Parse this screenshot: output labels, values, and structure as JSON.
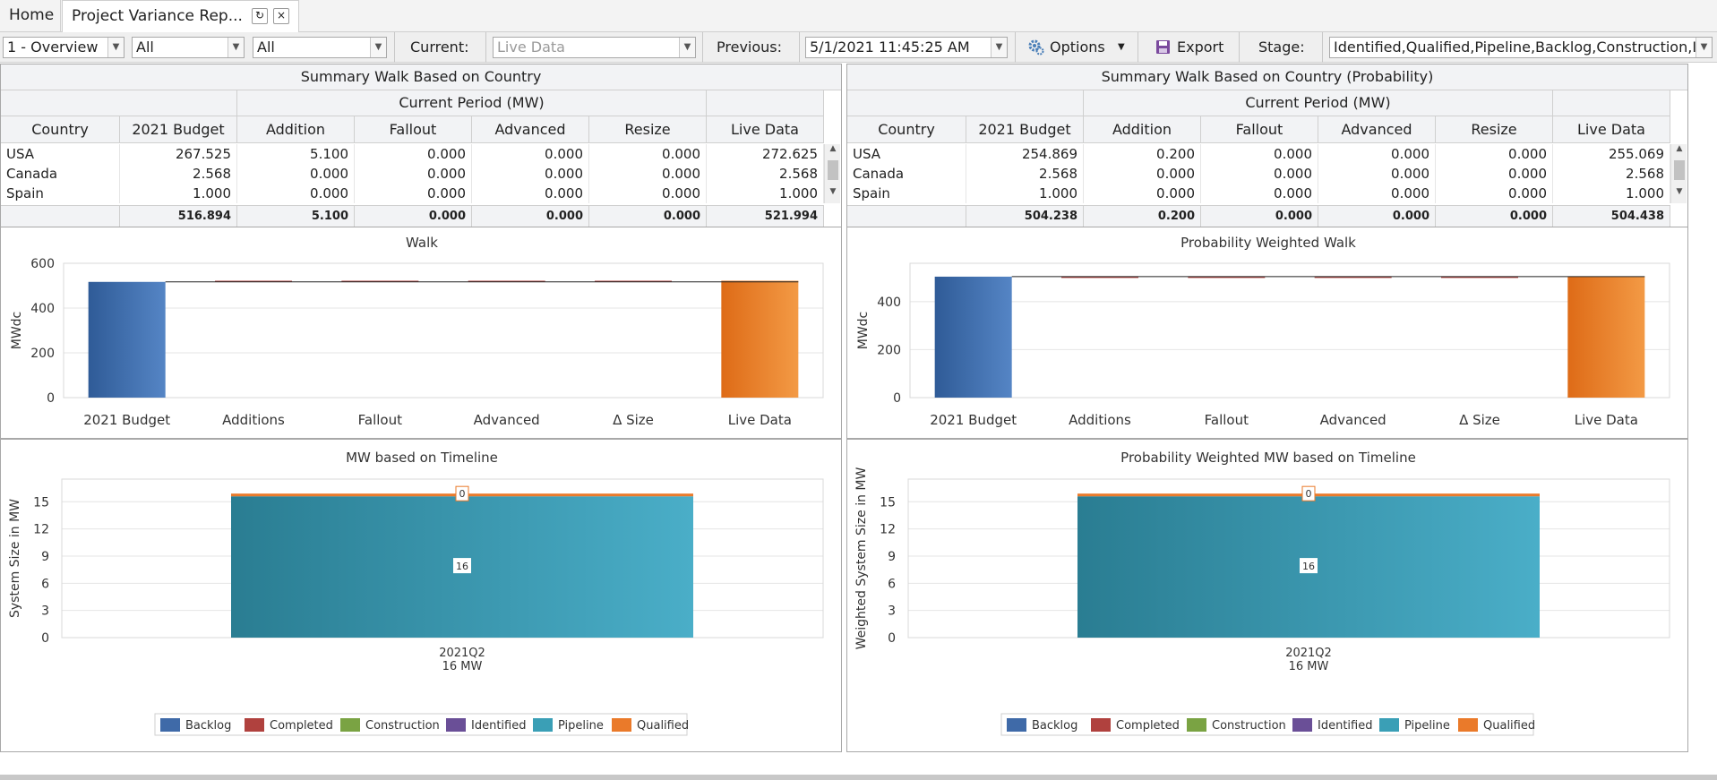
{
  "tabs": {
    "home": "Home",
    "active": "Project Variance Rep...",
    "refresh_icon": "↻",
    "close_icon": "×"
  },
  "toolbar": {
    "view_select": "1 - Overview",
    "filter1": "All",
    "filter2": "All",
    "current_label": "Current:",
    "current_value": "Live Data",
    "previous_label": "Previous:",
    "previous_value": "5/1/2021 11:45:25 AM",
    "options_label": "Options",
    "export_label": "Export",
    "stage_label": "Stage:",
    "stage_value": "Identified,Qualified,Pipeline,Backlog,Construction,Int"
  },
  "grid_left": {
    "title": "Summary Walk Based on Country",
    "group_header": "Current Period (MW)",
    "columns": [
      "Country",
      "2021 Budget",
      "Addition",
      "Fallout",
      "Advanced",
      "Resize",
      "Live Data"
    ],
    "rows": [
      [
        "USA",
        "267.525",
        "5.100",
        "0.000",
        "0.000",
        "0.000",
        "272.625"
      ],
      [
        "Canada",
        "2.568",
        "0.000",
        "0.000",
        "0.000",
        "0.000",
        "2.568"
      ],
      [
        "Spain",
        "1.000",
        "0.000",
        "0.000",
        "0.000",
        "0.000",
        "1.000"
      ]
    ],
    "totals": [
      "",
      "516.894",
      "5.100",
      "0.000",
      "0.000",
      "0.000",
      "521.994"
    ]
  },
  "grid_right": {
    "title": "Summary Walk Based on Country (Probability)",
    "group_header": "Current Period (MW)",
    "columns": [
      "Country",
      "2021 Budget",
      "Addition",
      "Fallout",
      "Advanced",
      "Resize",
      "Live Data"
    ],
    "rows": [
      [
        "USA",
        "254.869",
        "0.200",
        "0.000",
        "0.000",
        "0.000",
        "255.069"
      ],
      [
        "Canada",
        "2.568",
        "0.000",
        "0.000",
        "0.000",
        "0.000",
        "2.568"
      ],
      [
        "Spain",
        "1.000",
        "0.000",
        "0.000",
        "0.000",
        "0.000",
        "1.000"
      ]
    ],
    "totals": [
      "",
      "504.238",
      "0.200",
      "0.000",
      "0.000",
      "0.000",
      "504.438"
    ]
  },
  "chart_data": [
    {
      "type": "bar",
      "title": "Walk",
      "ylabel": "MWdc",
      "xlabel": "",
      "categories": [
        "2021 Budget",
        "Additions",
        "Fallout",
        "Advanced",
        "Δ Size",
        "Live Data"
      ],
      "values": [
        516.894,
        5.1,
        0,
        0,
        0,
        521.994
      ],
      "yticks": [
        "0",
        "200",
        "400",
        "600"
      ],
      "ylim": [
        0,
        600
      ]
    },
    {
      "type": "bar",
      "title": "Probability Weighted Walk",
      "ylabel": "MWdc",
      "xlabel": "",
      "categories": [
        "2021 Budget",
        "Additions",
        "Fallout",
        "Advanced",
        "Δ Size",
        "Live Data"
      ],
      "values": [
        504.238,
        0.2,
        0,
        0,
        0,
        504.438
      ],
      "yticks": [
        "0",
        "200",
        "400"
      ],
      "ylim": [
        0,
        560
      ]
    },
    {
      "type": "bar",
      "title": "MW based on Timeline",
      "ylabel": "System Size in MW",
      "categories": [
        "2021Q2"
      ],
      "category_sublabels": [
        "16 MW"
      ],
      "series": [
        {
          "name": "Backlog",
          "values": [
            0
          ]
        },
        {
          "name": "Completed",
          "values": [
            0
          ]
        },
        {
          "name": "Construction",
          "values": [
            0
          ]
        },
        {
          "name": "Identified",
          "values": [
            0
          ]
        },
        {
          "name": "Pipeline",
          "values": [
            15.6
          ]
        },
        {
          "name": "Qualified",
          "values": [
            0.3
          ]
        }
      ],
      "data_labels": [
        "16",
        "0"
      ],
      "yticks": [
        "0",
        "3",
        "6",
        "9",
        "12",
        "15"
      ],
      "ylim": [
        0,
        17.5
      ]
    },
    {
      "type": "bar",
      "title": "Probability Weighted MW based on Timeline",
      "ylabel": "Weighted System Size in MW",
      "categories": [
        "2021Q2"
      ],
      "category_sublabels": [
        "16 MW"
      ],
      "series": [
        {
          "name": "Backlog",
          "values": [
            0
          ]
        },
        {
          "name": "Completed",
          "values": [
            0
          ]
        },
        {
          "name": "Construction",
          "values": [
            0
          ]
        },
        {
          "name": "Identified",
          "values": [
            0
          ]
        },
        {
          "name": "Pipeline",
          "values": [
            15.6
          ]
        },
        {
          "name": "Qualified",
          "values": [
            0.3
          ]
        }
      ],
      "data_labels": [
        "16",
        "0"
      ],
      "yticks": [
        "0",
        "3",
        "6",
        "9",
        "12",
        "15"
      ],
      "ylim": [
        0,
        17.5
      ]
    }
  ],
  "legend_colors": {
    "Backlog": "#3f6aa8",
    "Completed": "#b0413e",
    "Construction": "#7aa343",
    "Identified": "#6a4f97",
    "Pipeline": "#3a9fb6",
    "Qualified": "#ea7a2a"
  },
  "colors": {
    "budget_bar": "#4372b3",
    "live_bar": "#e97a22",
    "delta_bar": "#b0413e"
  }
}
